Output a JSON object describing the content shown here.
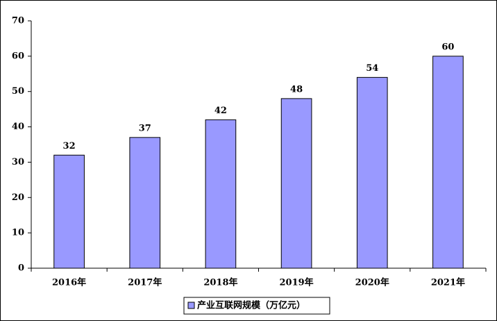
{
  "chart_data": {
    "type": "bar",
    "categories": [
      "2016年",
      "2017年",
      "2018年",
      "2019年",
      "2020年",
      "2021年"
    ],
    "series": [
      {
        "name": "产业互联网规模（万亿元）",
        "color": "#9999ff",
        "values": [
          32,
          37,
          42,
          48,
          54,
          60
        ]
      }
    ],
    "ylim": [
      0,
      70
    ],
    "yticks": [
      0,
      10,
      20,
      30,
      40,
      50,
      60,
      70
    ],
    "grid": false,
    "legend": "bottom",
    "data_labels": true
  }
}
